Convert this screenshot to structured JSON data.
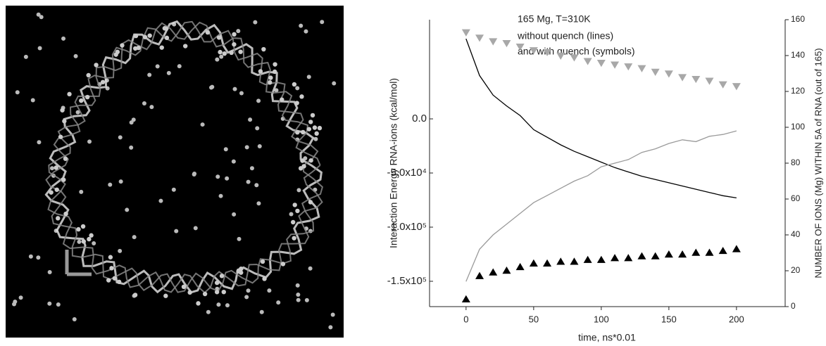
{
  "chart_data": {
    "type": "line",
    "annotation": [
      "165 Mg, T=310K",
      "without quench (lines)",
      "and with quench (symbols)"
    ],
    "xlabel": "time, ns*0.01",
    "ylabel": "Interaction Energy RNA-ions (kcal/mol)",
    "y2label": "NUMBER OF IONS (Mg) WITHIN 5A of RNA (out of 165)",
    "x": [
      0,
      10,
      20,
      30,
      40,
      50,
      60,
      70,
      80,
      90,
      100,
      110,
      120,
      130,
      140,
      150,
      160,
      170,
      180,
      190,
      200
    ],
    "series": [
      {
        "color": "#000000",
        "style": "line",
        "axis": "y",
        "values": [
          74000,
          40000,
          22000,
          12000,
          3000,
          -10000,
          -17000,
          -24000,
          -30000,
          -35000,
          -40000,
          -45000,
          -49000,
          -53000,
          -56000,
          -59000,
          -62000,
          -65000,
          -68000,
          -71000,
          -73000
        ]
      },
      {
        "color": "#9a9a9a",
        "style": "line",
        "axis": "y2",
        "values": [
          14,
          32,
          40,
          46,
          52,
          58,
          62,
          66,
          70,
          73,
          78,
          80,
          82,
          86,
          88,
          91,
          93,
          92,
          95,
          96,
          98
        ]
      },
      {
        "color": "#a8a8a8",
        "style": "triangle-down",
        "axis": "y2",
        "values": [
          153,
          150,
          148,
          147,
          145,
          143,
          142,
          140,
          139,
          137,
          136,
          135,
          134,
          133,
          131,
          130,
          128,
          127,
          126,
          124,
          123
        ]
      },
      {
        "color": "#000000",
        "style": "triangle-up",
        "axis": "y2",
        "values": [
          4,
          17,
          19,
          20,
          22,
          24,
          24,
          25,
          25,
          26,
          26,
          27,
          27,
          28,
          28,
          29,
          29,
          30,
          30,
          31,
          32
        ]
      }
    ],
    "xlim": [
      -27,
      236
    ],
    "xticks": [
      0,
      50,
      100,
      150,
      200
    ],
    "ylim": [
      -173400,
      91600
    ],
    "yticks": [
      {
        "value": 0,
        "label": "0.0"
      },
      {
        "value": -50000,
        "label": "-5.0x10⁴"
      },
      {
        "value": -100000,
        "label": "-1.0x10⁵"
      },
      {
        "value": -150000,
        "label": "-1.5x10⁵"
      }
    ],
    "y2lim": [
      0,
      160
    ],
    "y2ticks": [
      0,
      20,
      40,
      60,
      80,
      100,
      120,
      140,
      160
    ]
  }
}
